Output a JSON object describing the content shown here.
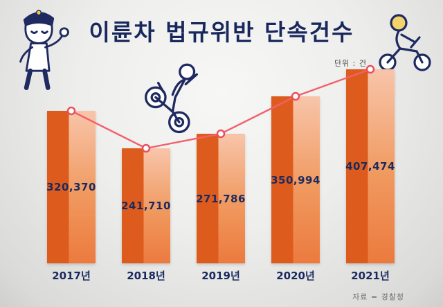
{
  "title": "이륜차 법규위반 단속건수",
  "unit_label": "단위 : 건",
  "source_label": "자료 = 경찰청",
  "colors": {
    "bar_dark": "#dd5c1d",
    "bar_gradient_top": "#f8c5aa",
    "bar_gradient_bottom": "#ec7a3e",
    "trend_line": "#f2606b",
    "marker_ring": "#e8505c",
    "text_navy": "#1b2a5e"
  },
  "chart_data": {
    "type": "bar",
    "title": "이륜차 법규위반 단속건수",
    "unit": "단위 : 건",
    "source": "자료 = 경찰청",
    "categories": [
      "2017년",
      "2018년",
      "2019년",
      "2020년",
      "2021년"
    ],
    "values": [
      320370,
      241710,
      271786,
      350994,
      407474
    ],
    "value_labels": [
      "320,370",
      "241,710",
      "271,786",
      "350,994",
      "407,474"
    ],
    "overlay": "line-with-markers",
    "ylim": [
      0,
      407474
    ],
    "legend": "none",
    "grid": false
  }
}
